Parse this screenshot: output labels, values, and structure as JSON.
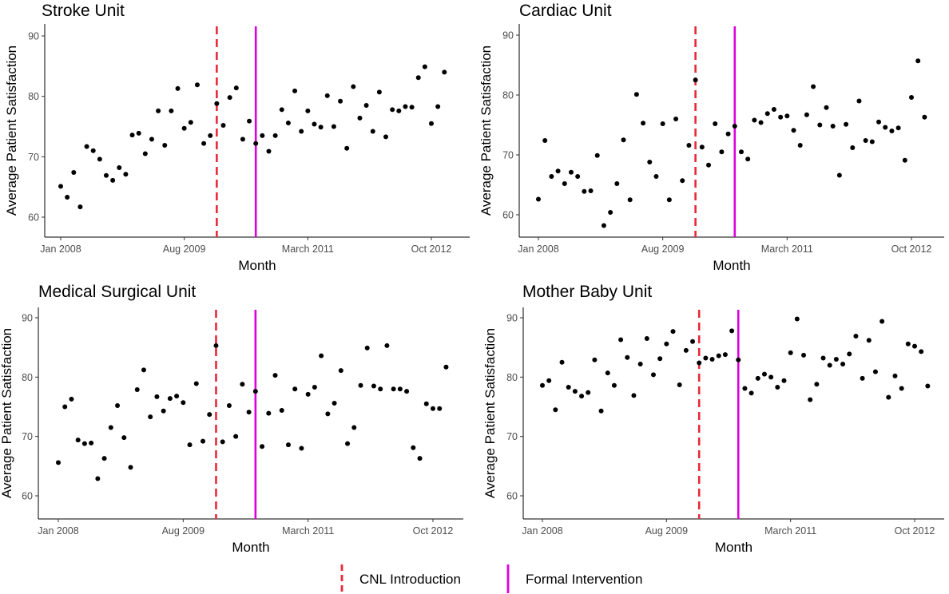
{
  "chart_data": [
    {
      "type": "scatter",
      "title": "Stroke Unit",
      "xlabel": "Month",
      "ylabel": "Average Patient Satisfaction",
      "x_ticks": [
        "Jan 2008",
        "Aug 2009",
        "March 2011",
        "Oct 2012"
      ],
      "y_ticks": [
        60,
        70,
        80,
        90
      ],
      "xlim": [
        "2007-11",
        "2013-04"
      ],
      "ylim": [
        57,
        91
      ],
      "grid": false,
      "vlines": [
        {
          "name": "CNL Introduction",
          "x": "2010-01"
        },
        {
          "name": "Formal Intervention",
          "x": "2010-07"
        }
      ],
      "points": [
        {
          "x": "2008-01",
          "y": 65.1
        },
        {
          "x": "2008-02",
          "y": 63.3
        },
        {
          "x": "2008-03",
          "y": 67.4
        },
        {
          "x": "2008-04",
          "y": 61.7
        },
        {
          "x": "2008-05",
          "y": 71.7
        },
        {
          "x": "2008-06",
          "y": 71.0
        },
        {
          "x": "2008-07",
          "y": 69.6
        },
        {
          "x": "2008-08",
          "y": 66.9
        },
        {
          "x": "2008-09",
          "y": 66.1
        },
        {
          "x": "2008-10",
          "y": 68.2
        },
        {
          "x": "2008-11",
          "y": 67.1
        },
        {
          "x": "2008-12",
          "y": 73.6
        },
        {
          "x": "2009-01",
          "y": 73.9
        },
        {
          "x": "2009-02",
          "y": 70.5
        },
        {
          "x": "2009-03",
          "y": 72.9
        },
        {
          "x": "2009-04",
          "y": 77.6
        },
        {
          "x": "2009-05",
          "y": 71.9
        },
        {
          "x": "2009-06",
          "y": 77.6
        },
        {
          "x": "2009-07",
          "y": 81.3
        },
        {
          "x": "2009-08",
          "y": 74.7
        },
        {
          "x": "2009-09",
          "y": 75.7
        },
        {
          "x": "2009-10",
          "y": 81.9
        },
        {
          "x": "2009-11",
          "y": 72.2
        },
        {
          "x": "2009-12",
          "y": 73.5
        },
        {
          "x": "2010-01",
          "y": 78.8
        },
        {
          "x": "2010-02",
          "y": 75.2
        },
        {
          "x": "2010-03",
          "y": 79.8
        },
        {
          "x": "2010-04",
          "y": 81.4
        },
        {
          "x": "2010-05",
          "y": 72.9
        },
        {
          "x": "2010-06",
          "y": 75.9
        },
        {
          "x": "2010-07",
          "y": 72.2
        },
        {
          "x": "2010-08",
          "y": 73.5
        },
        {
          "x": "2010-09",
          "y": 70.9
        },
        {
          "x": "2010-10",
          "y": 73.5
        },
        {
          "x": "2010-11",
          "y": 77.8
        },
        {
          "x": "2010-12",
          "y": 75.6
        },
        {
          "x": "2011-01",
          "y": 80.9
        },
        {
          "x": "2011-02",
          "y": 74.2
        },
        {
          "x": "2011-03",
          "y": 77.6
        },
        {
          "x": "2011-04",
          "y": 75.4
        },
        {
          "x": "2011-05",
          "y": 74.9
        },
        {
          "x": "2011-06",
          "y": 80.1
        },
        {
          "x": "2011-07",
          "y": 75.0
        },
        {
          "x": "2011-08",
          "y": 79.2
        },
        {
          "x": "2011-09",
          "y": 71.4
        },
        {
          "x": "2011-10",
          "y": 81.6
        },
        {
          "x": "2011-11",
          "y": 76.4
        },
        {
          "x": "2011-12",
          "y": 78.5
        },
        {
          "x": "2012-01",
          "y": 74.2
        },
        {
          "x": "2012-02",
          "y": 80.7
        },
        {
          "x": "2012-03",
          "y": 73.3
        },
        {
          "x": "2012-04",
          "y": 77.8
        },
        {
          "x": "2012-05",
          "y": 77.6
        },
        {
          "x": "2012-06",
          "y": 78.3
        },
        {
          "x": "2012-07",
          "y": 78.2
        },
        {
          "x": "2012-08",
          "y": 83.1
        },
        {
          "x": "2012-09",
          "y": 84.9
        },
        {
          "x": "2012-10",
          "y": 75.5
        },
        {
          "x": "2012-11",
          "y": 78.3
        },
        {
          "x": "2012-12",
          "y": 84.0
        }
      ]
    },
    {
      "type": "scatter",
      "title": "Cardiac Unit",
      "xlabel": "Month",
      "ylabel": "Average Patient Satisfaction",
      "x_ticks": [
        "Jan 2008",
        "Aug 2009",
        "March 2011",
        "Oct 2012"
      ],
      "y_ticks": [
        60,
        70,
        80,
        90
      ],
      "xlim": [
        "2007-11",
        "2013-04"
      ],
      "ylim": [
        57,
        91
      ],
      "grid": false,
      "vlines": [
        {
          "name": "CNL Introduction",
          "x": "2010-01"
        },
        {
          "name": "Formal Intervention",
          "x": "2010-07"
        }
      ],
      "points": [
        {
          "x": "2008-01",
          "y": 62.6
        },
        {
          "x": "2008-02",
          "y": 72.4
        },
        {
          "x": "2008-03",
          "y": 66.4
        },
        {
          "x": "2008-04",
          "y": 67.3
        },
        {
          "x": "2008-05",
          "y": 65.2
        },
        {
          "x": "2008-06",
          "y": 67.1
        },
        {
          "x": "2008-07",
          "y": 66.4
        },
        {
          "x": "2008-08",
          "y": 63.9
        },
        {
          "x": "2008-09",
          "y": 64.0
        },
        {
          "x": "2008-10",
          "y": 69.9
        },
        {
          "x": "2008-11",
          "y": 58.2
        },
        {
          "x": "2008-12",
          "y": 60.4
        },
        {
          "x": "2009-01",
          "y": 65.2
        },
        {
          "x": "2009-02",
          "y": 72.5
        },
        {
          "x": "2009-03",
          "y": 62.5
        },
        {
          "x": "2009-04",
          "y": 80.1
        },
        {
          "x": "2009-05",
          "y": 75.3
        },
        {
          "x": "2009-06",
          "y": 68.8
        },
        {
          "x": "2009-07",
          "y": 66.4
        },
        {
          "x": "2009-08",
          "y": 75.2
        },
        {
          "x": "2009-09",
          "y": 62.5
        },
        {
          "x": "2009-10",
          "y": 76.0
        },
        {
          "x": "2009-11",
          "y": 65.7
        },
        {
          "x": "2009-12",
          "y": 71.6
        },
        {
          "x": "2010-01",
          "y": 82.5
        },
        {
          "x": "2010-02",
          "y": 71.3
        },
        {
          "x": "2010-03",
          "y": 68.3
        },
        {
          "x": "2010-04",
          "y": 75.2
        },
        {
          "x": "2010-05",
          "y": 70.5
        },
        {
          "x": "2010-06",
          "y": 73.5
        },
        {
          "x": "2010-07",
          "y": 74.8
        },
        {
          "x": "2010-08",
          "y": 70.5
        },
        {
          "x": "2010-09",
          "y": 69.3
        },
        {
          "x": "2010-10",
          "y": 75.8
        },
        {
          "x": "2010-11",
          "y": 75.4
        },
        {
          "x": "2010-12",
          "y": 76.9
        },
        {
          "x": "2011-01",
          "y": 77.6
        },
        {
          "x": "2011-02",
          "y": 76.3
        },
        {
          "x": "2011-03",
          "y": 76.5
        },
        {
          "x": "2011-04",
          "y": 74.1
        },
        {
          "x": "2011-05",
          "y": 71.6
        },
        {
          "x": "2011-06",
          "y": 76.7
        },
        {
          "x": "2011-07",
          "y": 81.4
        },
        {
          "x": "2011-08",
          "y": 75.0
        },
        {
          "x": "2011-09",
          "y": 77.9
        },
        {
          "x": "2011-10",
          "y": 74.8
        },
        {
          "x": "2011-11",
          "y": 66.6
        },
        {
          "x": "2011-12",
          "y": 75.1
        },
        {
          "x": "2012-01",
          "y": 71.2
        },
        {
          "x": "2012-02",
          "y": 79.0
        },
        {
          "x": "2012-03",
          "y": 72.4
        },
        {
          "x": "2012-04",
          "y": 72.2
        },
        {
          "x": "2012-05",
          "y": 75.5
        },
        {
          "x": "2012-06",
          "y": 74.6
        },
        {
          "x": "2012-07",
          "y": 74.0
        },
        {
          "x": "2012-08",
          "y": 74.5
        },
        {
          "x": "2012-09",
          "y": 69.1
        },
        {
          "x": "2012-10",
          "y": 79.6
        },
        {
          "x": "2012-11",
          "y": 85.7
        },
        {
          "x": "2012-12",
          "y": 76.3
        }
      ]
    },
    {
      "type": "scatter",
      "title": "Medical Surgical Unit",
      "xlabel": "Month",
      "ylabel": "Average Patient Satisfaction",
      "x_ticks": [
        "Jan 2008",
        "Aug 2009",
        "March 2011",
        "Oct 2012"
      ],
      "y_ticks": [
        60,
        70,
        80,
        90
      ],
      "xlim": [
        "2007-11",
        "2013-04"
      ],
      "ylim": [
        57,
        91
      ],
      "grid": false,
      "vlines": [
        {
          "name": "CNL Introduction",
          "x": "2010-01"
        },
        {
          "name": "Formal Intervention",
          "x": "2010-07"
        }
      ],
      "points": [
        {
          "x": "2008-01",
          "y": 65.6
        },
        {
          "x": "2008-02",
          "y": 75.0
        },
        {
          "x": "2008-03",
          "y": 76.3
        },
        {
          "x": "2008-04",
          "y": 69.4
        },
        {
          "x": "2008-05",
          "y": 68.8
        },
        {
          "x": "2008-06",
          "y": 68.9
        },
        {
          "x": "2008-07",
          "y": 62.9
        },
        {
          "x": "2008-08",
          "y": 66.3
        },
        {
          "x": "2008-09",
          "y": 71.5
        },
        {
          "x": "2008-10",
          "y": 75.2
        },
        {
          "x": "2008-11",
          "y": 69.8
        },
        {
          "x": "2008-12",
          "y": 64.8
        },
        {
          "x": "2009-01",
          "y": 77.9
        },
        {
          "x": "2009-02",
          "y": 81.2
        },
        {
          "x": "2009-03",
          "y": 73.3
        },
        {
          "x": "2009-04",
          "y": 76.7
        },
        {
          "x": "2009-05",
          "y": 74.3
        },
        {
          "x": "2009-06",
          "y": 76.4
        },
        {
          "x": "2009-07",
          "y": 76.8
        },
        {
          "x": "2009-08",
          "y": 75.7
        },
        {
          "x": "2009-09",
          "y": 68.6
        },
        {
          "x": "2009-10",
          "y": 78.9
        },
        {
          "x": "2009-11",
          "y": 69.2
        },
        {
          "x": "2009-12",
          "y": 73.7
        },
        {
          "x": "2010-01",
          "y": 85.3
        },
        {
          "x": "2010-02",
          "y": 69.1
        },
        {
          "x": "2010-03",
          "y": 75.2
        },
        {
          "x": "2010-04",
          "y": 70.0
        },
        {
          "x": "2010-05",
          "y": 78.8
        },
        {
          "x": "2010-06",
          "y": 74.1
        },
        {
          "x": "2010-07",
          "y": 77.6
        },
        {
          "x": "2010-08",
          "y": 68.3
        },
        {
          "x": "2010-09",
          "y": 73.9
        },
        {
          "x": "2010-10",
          "y": 80.3
        },
        {
          "x": "2010-11",
          "y": 74.4
        },
        {
          "x": "2010-12",
          "y": 68.6
        },
        {
          "x": "2011-01",
          "y": 78.0
        },
        {
          "x": "2011-02",
          "y": 68.0
        },
        {
          "x": "2011-03",
          "y": 77.1
        },
        {
          "x": "2011-04",
          "y": 78.3
        },
        {
          "x": "2011-05",
          "y": 83.6
        },
        {
          "x": "2011-06",
          "y": 73.8
        },
        {
          "x": "2011-07",
          "y": 75.6
        },
        {
          "x": "2011-08",
          "y": 81.1
        },
        {
          "x": "2011-09",
          "y": 68.8
        },
        {
          "x": "2011-10",
          "y": 71.5
        },
        {
          "x": "2011-11",
          "y": 78.6
        },
        {
          "x": "2011-12",
          "y": 84.9
        },
        {
          "x": "2012-01",
          "y": 78.5
        },
        {
          "x": "2012-02",
          "y": 78.0
        },
        {
          "x": "2012-03",
          "y": 85.3
        },
        {
          "x": "2012-04",
          "y": 78.0
        },
        {
          "x": "2012-05",
          "y": 78.0
        },
        {
          "x": "2012-06",
          "y": 77.6
        },
        {
          "x": "2012-07",
          "y": 68.1
        },
        {
          "x": "2012-08",
          "y": 66.3
        },
        {
          "x": "2012-09",
          "y": 75.5
        },
        {
          "x": "2012-10",
          "y": 74.7
        },
        {
          "x": "2012-11",
          "y": 74.7
        },
        {
          "x": "2012-12",
          "y": 81.7
        }
      ]
    },
    {
      "type": "scatter",
      "title": "Mother Baby Unit",
      "xlabel": "Month",
      "ylabel": "Average Patient Satisfaction",
      "x_ticks": [
        "Jan 2008",
        "Aug 2009",
        "March 2011",
        "Oct 2012"
      ],
      "y_ticks": [
        60,
        70,
        80,
        90
      ],
      "xlim": [
        "2007-11",
        "2013-04"
      ],
      "ylim": [
        57,
        91
      ],
      "grid": false,
      "vlines": [
        {
          "name": "CNL Introduction",
          "x": "2010-01"
        },
        {
          "name": "Formal Intervention",
          "x": "2010-07"
        }
      ],
      "points": [
        {
          "x": "2008-01",
          "y": 78.6
        },
        {
          "x": "2008-02",
          "y": 79.4
        },
        {
          "x": "2008-03",
          "y": 74.5
        },
        {
          "x": "2008-04",
          "y": 82.5
        },
        {
          "x": "2008-05",
          "y": 78.3
        },
        {
          "x": "2008-06",
          "y": 77.6
        },
        {
          "x": "2008-07",
          "y": 76.8
        },
        {
          "x": "2008-08",
          "y": 77.4
        },
        {
          "x": "2008-09",
          "y": 82.9
        },
        {
          "x": "2008-10",
          "y": 74.3
        },
        {
          "x": "2008-11",
          "y": 80.7
        },
        {
          "x": "2008-12",
          "y": 78.6
        },
        {
          "x": "2009-01",
          "y": 86.3
        },
        {
          "x": "2009-02",
          "y": 83.3
        },
        {
          "x": "2009-03",
          "y": 76.9
        },
        {
          "x": "2009-04",
          "y": 82.2
        },
        {
          "x": "2009-05",
          "y": 86.5
        },
        {
          "x": "2009-06",
          "y": 80.4
        },
        {
          "x": "2009-07",
          "y": 83.1
        },
        {
          "x": "2009-08",
          "y": 85.6
        },
        {
          "x": "2009-09",
          "y": 87.7
        },
        {
          "x": "2009-10",
          "y": 78.7
        },
        {
          "x": "2009-11",
          "y": 84.5
        },
        {
          "x": "2009-12",
          "y": 86.0
        },
        {
          "x": "2010-01",
          "y": 82.4
        },
        {
          "x": "2010-02",
          "y": 83.2
        },
        {
          "x": "2010-03",
          "y": 83.0
        },
        {
          "x": "2010-04",
          "y": 83.6
        },
        {
          "x": "2010-05",
          "y": 83.8
        },
        {
          "x": "2010-06",
          "y": 87.8
        },
        {
          "x": "2010-07",
          "y": 82.9
        },
        {
          "x": "2010-08",
          "y": 78.1
        },
        {
          "x": "2010-09",
          "y": 77.3
        },
        {
          "x": "2010-10",
          "y": 79.8
        },
        {
          "x": "2010-11",
          "y": 80.5
        },
        {
          "x": "2010-12",
          "y": 80.0
        },
        {
          "x": "2011-01",
          "y": 78.3
        },
        {
          "x": "2011-02",
          "y": 79.4
        },
        {
          "x": "2011-03",
          "y": 84.1
        },
        {
          "x": "2011-04",
          "y": 89.8
        },
        {
          "x": "2011-05",
          "y": 83.7
        },
        {
          "x": "2011-06",
          "y": 76.2
        },
        {
          "x": "2011-07",
          "y": 78.8
        },
        {
          "x": "2011-08",
          "y": 83.2
        },
        {
          "x": "2011-09",
          "y": 82.0
        },
        {
          "x": "2011-10",
          "y": 83.0
        },
        {
          "x": "2011-11",
          "y": 82.2
        },
        {
          "x": "2011-12",
          "y": 83.9
        },
        {
          "x": "2012-01",
          "y": 86.9
        },
        {
          "x": "2012-02",
          "y": 79.8
        },
        {
          "x": "2012-03",
          "y": 86.2
        },
        {
          "x": "2012-04",
          "y": 80.9
        },
        {
          "x": "2012-05",
          "y": 89.4
        },
        {
          "x": "2012-06",
          "y": 76.6
        },
        {
          "x": "2012-07",
          "y": 80.2
        },
        {
          "x": "2012-08",
          "y": 78.1
        },
        {
          "x": "2012-09",
          "y": 85.6
        },
        {
          "x": "2012-10",
          "y": 85.2
        },
        {
          "x": "2012-11",
          "y": 84.3
        },
        {
          "x": "2012-12",
          "y": 78.5
        }
      ]
    }
  ],
  "legend": {
    "position": "bottom",
    "items": [
      {
        "label": "CNL Introduction",
        "style": "dashed",
        "color": "#e8293a"
      },
      {
        "label": "Formal Intervention",
        "style": "solid",
        "color": "#dd00dd"
      }
    ]
  },
  "colors": {
    "point": "#000000",
    "cnl": "#e8293a",
    "intervention": "#dd00dd",
    "axis": "#000000",
    "tick_text": "#4d4d4d"
  }
}
